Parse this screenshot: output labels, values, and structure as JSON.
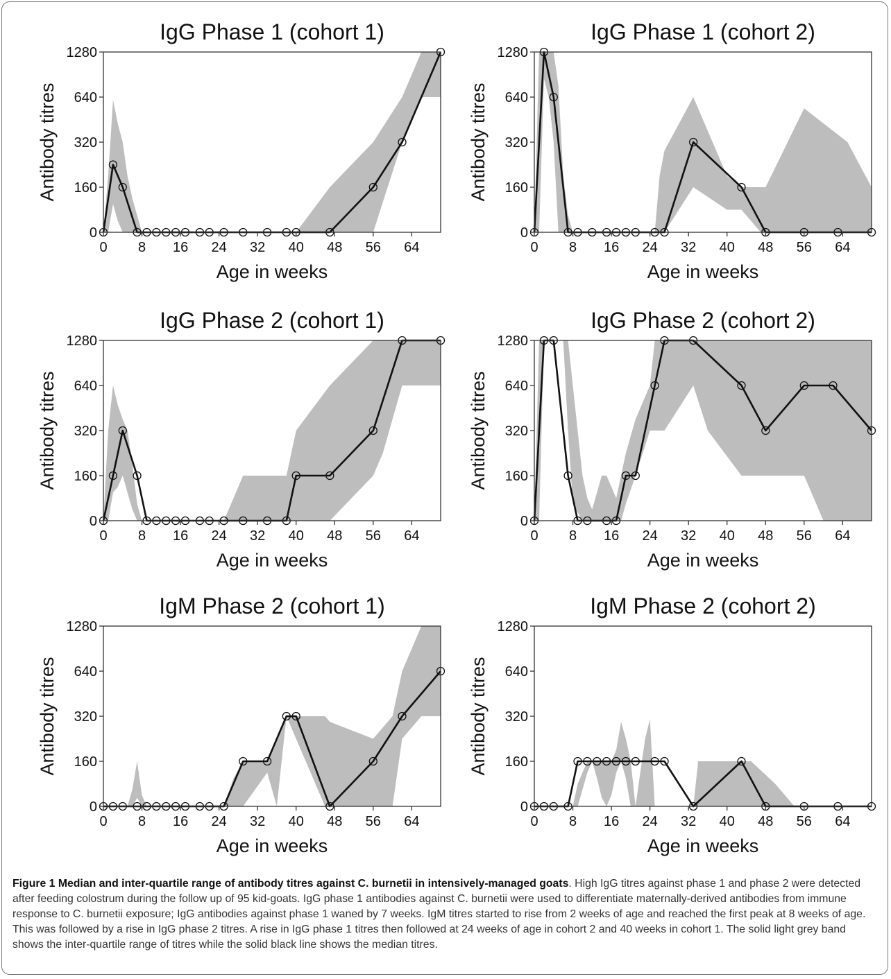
{
  "chart_data": [
    {
      "type": "line",
      "title": "IgG Phase 1 (cohort 1)",
      "xlabel": "Age in weeks",
      "ylabel": "Antibody titres",
      "xlim": [
        0,
        70
      ],
      "xticks": [
        "0",
        "8",
        "16",
        "24",
        "32",
        "40",
        "48",
        "56",
        "64"
      ],
      "yticks": [
        "0",
        "160",
        "320",
        "640",
        "1280"
      ],
      "median": {
        "x": [
          0,
          2,
          4,
          7,
          9,
          11,
          13,
          15,
          17,
          20,
          22,
          25,
          29,
          34,
          38,
          40,
          47,
          56,
          62,
          70
        ],
        "y": [
          0,
          240,
          160,
          0,
          0,
          0,
          0,
          0,
          0,
          0,
          0,
          0,
          0,
          0,
          0,
          0,
          0,
          160,
          320,
          1280
        ]
      },
      "iqr_band": {
        "x": [
          0,
          1,
          2,
          3,
          4,
          5,
          6,
          7,
          8,
          40,
          47,
          56,
          62,
          66,
          70
        ],
        "lower": [
          0,
          0,
          100,
          40,
          0,
          0,
          0,
          0,
          0,
          0,
          0,
          0,
          320,
          640,
          640
        ],
        "upper": [
          0,
          200,
          620,
          450,
          320,
          200,
          120,
          60,
          0,
          0,
          160,
          320,
          640,
          1280,
          1280
        ]
      }
    },
    {
      "type": "line",
      "title": "IgG Phase 1 (cohort 2)",
      "xlabel": "Age in weeks",
      "ylabel": "Antibody titres",
      "xlim": [
        0,
        70
      ],
      "xticks": [
        "0",
        "8",
        "16",
        "24",
        "32",
        "40",
        "48",
        "56",
        "64"
      ],
      "yticks": [
        "0",
        "160",
        "320",
        "640",
        "1280"
      ],
      "median": {
        "x": [
          0,
          2,
          4,
          7,
          9,
          12,
          15,
          17,
          19,
          21,
          25,
          27,
          33,
          43,
          48,
          56,
          63,
          70
        ],
        "y": [
          0,
          1280,
          640,
          0,
          0,
          0,
          0,
          0,
          0,
          0,
          0,
          0,
          320,
          160,
          0,
          0,
          0,
          0
        ]
      },
      "iqr_band": {
        "x": [
          0,
          1,
          2,
          3,
          4,
          5,
          6,
          7,
          8,
          25,
          26,
          27,
          33,
          40,
          43,
          47,
          48,
          56,
          65,
          70
        ],
        "lower": [
          0,
          0,
          900,
          640,
          320,
          0,
          0,
          0,
          0,
          0,
          0,
          0,
          160,
          80,
          80,
          0,
          0,
          0,
          0,
          0
        ],
        "upper": [
          0,
          1280,
          1280,
          1280,
          1280,
          800,
          200,
          60,
          0,
          0,
          200,
          290,
          640,
          200,
          160,
          160,
          160,
          560,
          320,
          160
        ]
      }
    },
    {
      "type": "line",
      "title": "IgG Phase 2 (cohort 1)",
      "xlabel": "Age in weeks",
      "ylabel": "Antibody titres",
      "xlim": [
        0,
        70
      ],
      "xticks": [
        "0",
        "8",
        "16",
        "24",
        "32",
        "40",
        "48",
        "56",
        "64"
      ],
      "yticks": [
        "0",
        "160",
        "320",
        "640",
        "1280"
      ],
      "median": {
        "x": [
          0,
          2,
          4,
          7,
          9,
          11,
          13,
          15,
          17,
          20,
          22,
          25,
          29,
          34,
          38,
          40,
          47,
          56,
          62,
          70
        ],
        "y": [
          0,
          160,
          320,
          160,
          0,
          0,
          0,
          0,
          0,
          0,
          0,
          0,
          0,
          0,
          0,
          160,
          160,
          320,
          1280,
          1280
        ]
      },
      "iqr_band": {
        "x": [
          0,
          1,
          2,
          3,
          4,
          5,
          6,
          7,
          8,
          9,
          25,
          27,
          29,
          38,
          40,
          47,
          56,
          58,
          62,
          70
        ],
        "lower": [
          0,
          0,
          100,
          120,
          160,
          100,
          40,
          0,
          0,
          0,
          0,
          0,
          0,
          0,
          0,
          0,
          160,
          240,
          640,
          640
        ],
        "upper": [
          0,
          320,
          640,
          500,
          400,
          320,
          200,
          60,
          0,
          0,
          0,
          80,
          160,
          160,
          320,
          640,
          1280,
          1280,
          1280,
          1280
        ]
      }
    },
    {
      "type": "line",
      "title": "IgG Phase 2 (cohort 2)",
      "xlabel": "Age in weeks",
      "ylabel": "Antibody titres",
      "xlim": [
        0,
        70
      ],
      "xticks": [
        "0",
        "8",
        "16",
        "24",
        "32",
        "40",
        "48",
        "56",
        "64"
      ],
      "yticks": [
        "0",
        "160",
        "320",
        "640",
        "1280"
      ],
      "median": {
        "x": [
          0,
          2,
          4,
          7,
          9,
          11,
          15,
          17,
          19,
          21,
          25,
          27,
          33,
          43,
          48,
          56,
          62,
          70
        ],
        "y": [
          0,
          1280,
          1280,
          160,
          0,
          0,
          0,
          0,
          160,
          160,
          640,
          1280,
          1280,
          640,
          320,
          640,
          640,
          320
        ]
      },
      "iqr_band": {
        "x": [
          0,
          1,
          2,
          4,
          6,
          7,
          8,
          10,
          11,
          12,
          14,
          15,
          16,
          17,
          18,
          19,
          21,
          24,
          25,
          27,
          33,
          36,
          43,
          56,
          60,
          70
        ],
        "lower": [
          0,
          0,
          1280,
          1280,
          1280,
          320,
          60,
          0,
          0,
          0,
          0,
          0,
          0,
          0,
          0,
          60,
          160,
          320,
          320,
          320,
          640,
          320,
          160,
          160,
          0,
          0
        ],
        "upper": [
          0,
          1280,
          1280,
          1280,
          1280,
          1280,
          640,
          160,
          80,
          40,
          160,
          160,
          120,
          80,
          160,
          240,
          400,
          640,
          1280,
          1280,
          1280,
          1280,
          1280,
          1280,
          1280,
          1280
        ]
      }
    },
    {
      "type": "line",
      "title": "IgM Phase 2 (cohort 1)",
      "xlabel": "Age in weeks",
      "ylabel": "Antibody titres",
      "xlim": [
        0,
        70
      ],
      "xticks": [
        "0",
        "8",
        "16",
        "24",
        "32",
        "40",
        "48",
        "56",
        "64"
      ],
      "yticks": [
        "0",
        "160",
        "320",
        "640",
        "1280"
      ],
      "median": {
        "x": [
          0,
          2,
          4,
          7,
          9,
          11,
          13,
          15,
          17,
          20,
          22,
          25,
          29,
          34,
          38,
          40,
          47,
          56,
          62,
          70
        ],
        "y": [
          0,
          0,
          0,
          0,
          0,
          0,
          0,
          0,
          0,
          0,
          0,
          0,
          160,
          160,
          320,
          320,
          0,
          160,
          320,
          640
        ]
      },
      "iqr_band": {
        "x": [
          0,
          5,
          6,
          7,
          8,
          9,
          25,
          27,
          29,
          34,
          36,
          38,
          46,
          47,
          56,
          60,
          62,
          66,
          70
        ],
        "lower": [
          0,
          0,
          0,
          30,
          0,
          0,
          0,
          0,
          0,
          120,
          0,
          320,
          0,
          0,
          0,
          0,
          240,
          320,
          320
        ],
        "upper": [
          0,
          0,
          60,
          160,
          40,
          0,
          0,
          100,
          160,
          160,
          240,
          320,
          320,
          300,
          240,
          320,
          640,
          1280,
          1280
        ]
      }
    },
    {
      "type": "line",
      "title": "IgM Phase 2 (cohort 2)",
      "xlabel": "Age in weeks",
      "ylabel": "Antibody titres",
      "xlim": [
        0,
        70
      ],
      "xticks": [
        "0",
        "8",
        "16",
        "24",
        "32",
        "40",
        "48",
        "56",
        "64"
      ],
      "yticks": [
        "0",
        "160",
        "320",
        "640",
        "1280"
      ],
      "median": {
        "x": [
          0,
          2,
          4,
          7,
          9,
          11,
          13,
          15,
          17,
          19,
          21,
          25,
          27,
          33,
          43,
          48,
          56,
          63,
          70
        ],
        "y": [
          0,
          0,
          0,
          0,
          160,
          160,
          160,
          160,
          160,
          160,
          160,
          160,
          160,
          0,
          160,
          0,
          0,
          0,
          0
        ]
      },
      "iqr_band": {
        "x": [
          0,
          8,
          9,
          11,
          12,
          13,
          14,
          15,
          16,
          17,
          18,
          19,
          20,
          21,
          22,
          23,
          24,
          25,
          26,
          33,
          34,
          45,
          50,
          54,
          70
        ],
        "lower": [
          0,
          0,
          0,
          120,
          160,
          100,
          30,
          0,
          40,
          120,
          160,
          100,
          0,
          0,
          0,
          0,
          0,
          0,
          0,
          0,
          0,
          0,
          0,
          0,
          0
        ],
        "upper": [
          0,
          0,
          80,
          160,
          160,
          160,
          160,
          160,
          160,
          200,
          300,
          240,
          160,
          0,
          120,
          240,
          310,
          0,
          0,
          0,
          160,
          160,
          80,
          0,
          0
        ]
      }
    }
  ],
  "caption": {
    "head": "Figure 1  Median and inter-quartile range of antibody titres against C. burnetii in intensively-managed goats",
    "body": ". High IgG titres against phase 1 and phase 2 were detected after feeding colostrum during the follow up of 95 kid-goats. IgG phase 1 antibodies against C. burnetii were used to differentiate maternally-derived antibodies from immune response to C. burnetii exposure; IgG antibodies against phase 1 waned by 7 weeks. IgM titres started to rise from 2 weeks of age and reached the first peak at 8 weeks of age. This was followed by a rise in IgG phase 2 titres. A rise in IgG phase 1 titres then followed at 24 weeks of age in cohort 2 and 40 weeks in cohort 1. The solid light grey band shows the inter-quartile range of titres while the solid black line shows the median titres."
  }
}
